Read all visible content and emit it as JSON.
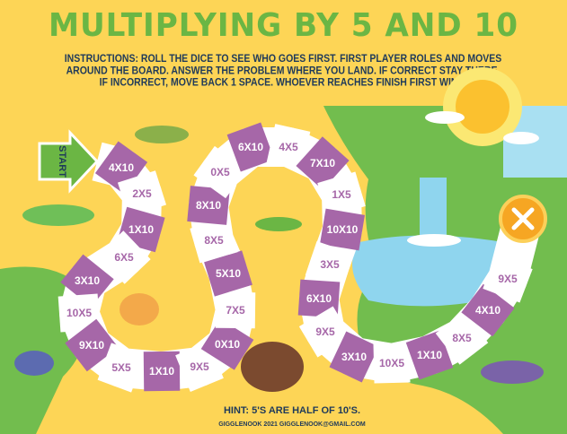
{
  "title": "MULTIPLYING BY 5 AND 10",
  "instructions": "INSTRUCTIONS: ROLL THE DICE TO SEE WHO GOES FIRST. FIRST PLAYER ROLES AND MOVES AROUND THE BOARD. ANSWER THE PROBLEM WHERE YOU LAND. IF CORRECT STAY THERE. IF INCORRECT, MOVE BACK 1 SPACE. WHOEVER REACHES FINISH FIRST WINS.",
  "start_label": "START",
  "finish_icon": "x-circle-icon",
  "spaces": [
    "4X10",
    "2X5",
    "1X10",
    "6X5",
    "3X10",
    "10X5",
    "9X10",
    "5X5",
    "1X10",
    "9X5",
    "0X10",
    "7X5",
    "5X10",
    "8X5",
    "8X10",
    "0X5",
    "6X10",
    "4X5",
    "7X10",
    "1X5",
    "10X10",
    "3X5",
    "6X10",
    "9X5",
    "3X10",
    "10X5",
    "1X10",
    "8X5",
    "4X10",
    "9X5"
  ],
  "hint": "HINT: 5'S ARE HALF OF 10'S.",
  "credit": "GIGGLENOOK 2021 GIGGLENOOK@GMAIL.COM",
  "colors": {
    "background": "#fdd556",
    "title": "#6bb644",
    "purple": "#a667a8",
    "white": "#ffffff",
    "text_dark": "#1f3a5a",
    "grass": "#72bd4e",
    "water": "#8fd5ee",
    "finish": "#f6a623"
  }
}
